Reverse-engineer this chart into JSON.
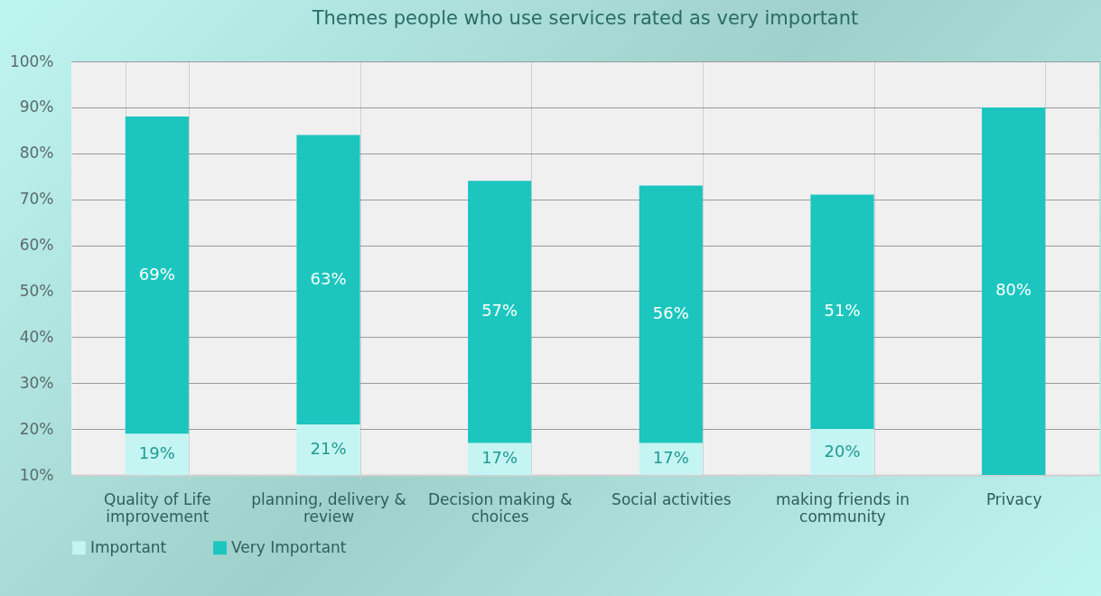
{
  "chart_data": {
    "type": "bar",
    "title": "Themes people who use services rated as very important",
    "categories": [
      "Quality of Life improvement",
      "planning, delivery & review",
      "Decision making & choices",
      "Social activities",
      "making friends in community",
      "Privacy"
    ],
    "stacked": true,
    "series": [
      {
        "name": "Important",
        "color": "#c4f5f2",
        "values": [
          19,
          21,
          17,
          17,
          20,
          10
        ],
        "value_labels": [
          "19%",
          "21%",
          "17%",
          "17%",
          "20%",
          null
        ]
      },
      {
        "name": "Very Important",
        "color": "#1cc6bf",
        "values": [
          69,
          63,
          57,
          56,
          51,
          80
        ],
        "value_labels": [
          "69%",
          "63%",
          "57%",
          "56%",
          "51%",
          "80%"
        ]
      }
    ],
    "ylim": [
      10,
      100
    ],
    "yticks": [
      {
        "value": 10,
        "label": "10%"
      },
      {
        "value": 20,
        "label": "20%"
      },
      {
        "value": 30,
        "label": "30%"
      },
      {
        "value": 40,
        "label": "40%"
      },
      {
        "value": 50,
        "label": "50%"
      },
      {
        "value": 60,
        "label": "60%"
      },
      {
        "value": 70,
        "label": "70%"
      },
      {
        "value": 80,
        "label": "80%"
      },
      {
        "value": 90,
        "label": "90%"
      },
      {
        "value": 100,
        "label": "100%"
      }
    ],
    "grid": true,
    "legend": "bottom"
  }
}
